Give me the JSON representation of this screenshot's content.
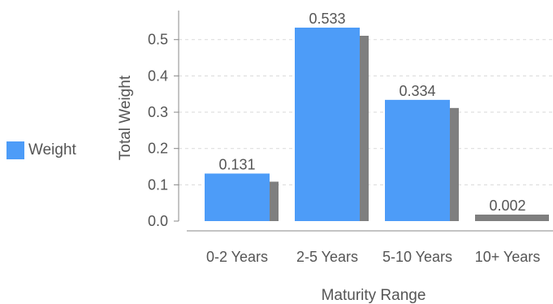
{
  "chart_data": {
    "type": "bar",
    "categories": [
      "0-2 Years",
      "2-5 Years",
      "5-10 Years",
      "10+ Years"
    ],
    "series": [
      {
        "name": "Weight",
        "values": [
          0.131,
          0.533,
          0.334,
          0.002
        ]
      }
    ],
    "value_labels": [
      "0.131",
      "0.533",
      "0.334",
      "0.002"
    ],
    "xlabel": "Maturity Range",
    "ylabel": "Total Weight",
    "ylim": [
      0,
      0.58
    ],
    "yticks": [
      "0.0",
      "0.1",
      "0.2",
      "0.3",
      "0.4",
      "0.5"
    ],
    "grid": true,
    "legend_position": "left",
    "colors": {
      "bar": "#4d9cf8",
      "shadow": "#7f7f7f",
      "grid": "#d9d9d9",
      "axis": "#888888",
      "text": "#555555"
    }
  }
}
